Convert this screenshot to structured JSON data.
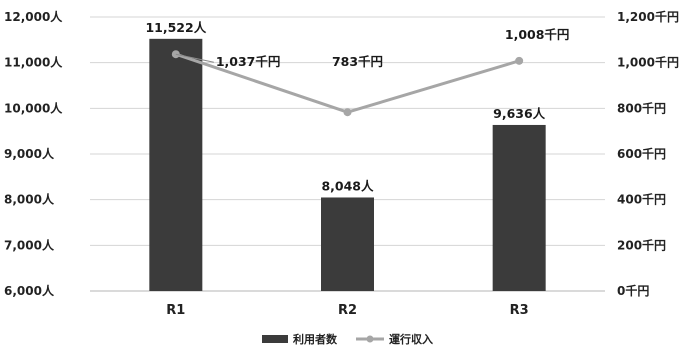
{
  "chart_data": {
    "type": "bar",
    "categories": [
      "R1",
      "R2",
      "R3"
    ],
    "series": [
      {
        "name": "利用者数",
        "type": "bar",
        "axis": "left",
        "values": [
          11522,
          8048,
          9636
        ],
        "labels": [
          "11,522人",
          "8,048人",
          "9,636人"
        ],
        "color": "#3b3b3b"
      },
      {
        "name": "運行収入",
        "type": "line",
        "axis": "right",
        "values": [
          1037,
          783,
          1008
        ],
        "labels": [
          "1,037千円",
          "783千円",
          "1,008千円"
        ],
        "color": "#a6a6a6"
      }
    ],
    "y_left": {
      "range": [
        6000,
        12000
      ],
      "ticks": [
        6000,
        7000,
        8000,
        9000,
        10000,
        11000,
        12000
      ],
      "tick_labels": [
        "6,000人",
        "7,000人",
        "8,000人",
        "9,000人",
        "10,000人",
        "11,000人",
        "12,000人"
      ]
    },
    "y_right": {
      "range": [
        0,
        1200
      ],
      "ticks": [
        0,
        200,
        400,
        600,
        800,
        1000,
        1200
      ],
      "tick_labels": [
        "0千円",
        "200千円",
        "400千円",
        "600千円",
        "800千円",
        "1,000千円",
        "1,200千円"
      ]
    },
    "grid": true,
    "legend_position": "bottom"
  }
}
